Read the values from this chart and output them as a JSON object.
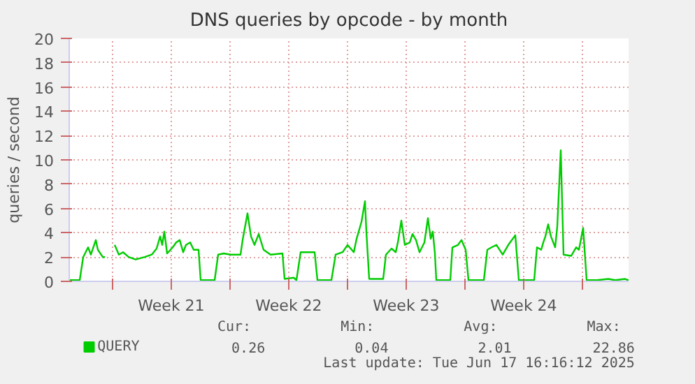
{
  "chart_data": {
    "type": "line",
    "title": "DNS queries by opcode - by month",
    "ylabel": "queries / second",
    "x": [
      "2025-05-16T11:00",
      "2025-05-17T01:00",
      "2025-05-17T06:00",
      "2025-05-17T13:00",
      "2025-05-17T17:00",
      "2025-05-18T00:00",
      "2025-05-18T03:00",
      "2025-05-18T10:00",
      "2025-05-18T13:00",
      "2025-05-18T19:00",
      "2025-05-19T03:00",
      "2025-05-19T09:00",
      "2025-05-19T15:00",
      "2025-05-19T23:00",
      "2025-05-20T09:00",
      "2025-05-20T22:00",
      "2025-05-21T08:00",
      "2025-05-21T15:00",
      "2025-05-21T20:00",
      "2025-05-21T23:00",
      "2025-05-22T02:00",
      "2025-05-22T06:00",
      "2025-05-22T14:00",
      "2025-05-22T19:00",
      "2025-05-23T00:00",
      "2025-05-23T05:00",
      "2025-05-23T09:00",
      "2025-05-23T15:00",
      "2025-05-23T20:00",
      "2025-05-24T03:00",
      "2025-05-24T06:00",
      "2025-05-25T02:00",
      "2025-05-25T07:00",
      "2025-05-25T15:00",
      "2025-05-26T01:00",
      "2025-05-26T15:00",
      "2025-05-26T18:00",
      "2025-05-27T01:00",
      "2025-05-27T06:00",
      "2025-05-27T11:00",
      "2025-05-27T17:00",
      "2025-05-28T00:00",
      "2025-05-28T10:00",
      "2025-05-29T03:00",
      "2025-05-29T06:00",
      "2025-05-29T19:00",
      "2025-05-29T23:00",
      "2025-05-30T05:00",
      "2025-05-31T01:00",
      "2025-05-31T05:00",
      "2025-06-01T01:00",
      "2025-06-01T07:00",
      "2025-06-01T17:00",
      "2025-06-02T00:00",
      "2025-06-02T09:00",
      "2025-06-02T13:00",
      "2025-06-02T20:00",
      "2025-06-03T01:00",
      "2025-06-03T03:00",
      "2025-06-03T07:00",
      "2025-06-04T03:00",
      "2025-06-04T07:00",
      "2025-06-04T15:00",
      "2025-06-04T21:00",
      "2025-06-05T00:00",
      "2025-06-05T05:00",
      "2025-06-05T10:00",
      "2025-06-05T17:00",
      "2025-06-05T21:00",
      "2025-06-06T02:00",
      "2025-06-06T07:00",
      "2025-06-06T14:00",
      "2025-06-06T19:00",
      "2025-06-06T23:00",
      "2025-06-07T02:00",
      "2025-06-07T05:00",
      "2025-06-07T07:00",
      "2025-06-08T03:00",
      "2025-06-08T06:00",
      "2025-06-08T14:00",
      "2025-06-08T19:00",
      "2025-06-09T01:00",
      "2025-06-09T05:00",
      "2025-06-10T03:00",
      "2025-06-10T08:00",
      "2025-06-10T14:00",
      "2025-06-10T21:00",
      "2025-06-11T06:00",
      "2025-06-11T14:00",
      "2025-06-12T00:00",
      "2025-06-12T05:00",
      "2025-06-13T03:00",
      "2025-06-13T07:00",
      "2025-06-13T13:00",
      "2025-06-13T16:00",
      "2025-06-13T19:00",
      "2025-06-13T23:00",
      "2025-06-14T03:00",
      "2025-06-14T09:00",
      "2025-06-14T12:00",
      "2025-06-14T17:00",
      "2025-06-14T21:00",
      "2025-06-15T08:00",
      "2025-06-15T15:00",
      "2025-06-15T19:00",
      "2025-06-16T01:00",
      "2025-06-16T06:00",
      "2025-06-16T21:00",
      "2025-06-17T13:00",
      "2025-06-17T23:00",
      "2025-06-18T13:00",
      "2025-06-18T18:00"
    ],
    "series": [
      {
        "name": "QUERY",
        "color": "#00cc00",
        "values": [
          0.1,
          0.1,
          2.0,
          2.8,
          2.2,
          3.4,
          2.6,
          2.0,
          2.0,
          null,
          3.0,
          2.2,
          2.4,
          2.0,
          1.8,
          2.0,
          2.2,
          2.7,
          3.7,
          3.0,
          4.1,
          2.3,
          2.8,
          3.2,
          3.4,
          2.4,
          3.0,
          3.2,
          2.6,
          2.6,
          0.1,
          0.1,
          2.2,
          2.3,
          2.2,
          2.2,
          3.4,
          5.6,
          3.7,
          3.0,
          3.9,
          2.6,
          2.2,
          2.3,
          0.2,
          0.3,
          0.1,
          2.4,
          2.4,
          0.1,
          0.1,
          2.2,
          2.4,
          3.0,
          2.4,
          3.5,
          4.9,
          6.6,
          4.1,
          0.2,
          0.2,
          2.2,
          2.7,
          2.4,
          3.2,
          5.0,
          3.0,
          3.2,
          3.9,
          3.4,
          2.4,
          3.2,
          5.2,
          3.5,
          4.1,
          2.3,
          0.1,
          0.1,
          2.8,
          3.0,
          3.4,
          2.6,
          0.1,
          0.1,
          2.6,
          2.8,
          3.0,
          2.2,
          3.0,
          3.8,
          0.1,
          0.1,
          2.8,
          2.6,
          3.2,
          3.7,
          4.7,
          3.7,
          2.8,
          4.5,
          10.8,
          2.2,
          2.1,
          2.8,
          2.6,
          4.4,
          0.1,
          0.1,
          0.2,
          0.1,
          0.2,
          0.1
        ]
      }
    ],
    "xlim": [
      "2025-05-16T10:00",
      "2025-06-18T18:00"
    ],
    "xticks": [
      {
        "value": "2025-05-19",
        "label": null
      },
      {
        "value": "2025-05-22T12:00",
        "label": "Week 21"
      },
      {
        "value": "2025-05-26",
        "label": null
      },
      {
        "value": "2025-05-29T12:00",
        "label": "Week 22"
      },
      {
        "value": "2025-06-02",
        "label": null
      },
      {
        "value": "2025-06-05T12:00",
        "label": "Week 23"
      },
      {
        "value": "2025-06-09",
        "label": null
      },
      {
        "value": "2025-06-12T12:00",
        "label": "Week 24"
      },
      {
        "value": "2025-06-16",
        "label": null
      }
    ],
    "ylim": [
      0,
      20
    ],
    "yticks": [
      0,
      2,
      4,
      6,
      8,
      10,
      12,
      14,
      16,
      18,
      20
    ],
    "grid": true,
    "line_style": "solid",
    "marker": "none",
    "legend": "bottom",
    "annotations": [
      "Cur:",
      "Min:",
      "Avg:",
      "Max:",
      "0.26",
      "0.04",
      "2.01",
      "22.86",
      "Last update: Tue Jun 17 16:16:12 2025"
    ]
  }
}
